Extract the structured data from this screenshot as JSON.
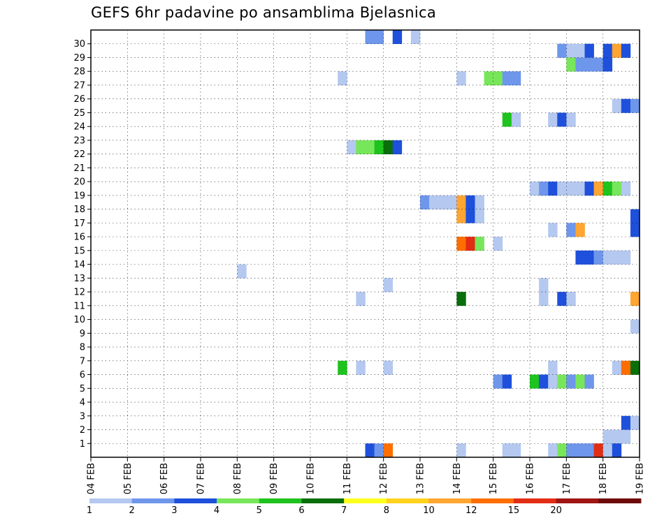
{
  "title": "GEFS 6hr padavine po ansamblima Bjelasnica",
  "chart_data": {
    "type": "heatmap",
    "title": "GEFS 6hr padavine po ansamblima Bjelasnica",
    "xlabel": "",
    "ylabel": "",
    "x_tick_labels": [
      "04 FEB",
      "05 FEB",
      "06 FEB",
      "07 FEB",
      "08 FEB",
      "09 FEB",
      "10 FEB",
      "11 FEB",
      "12 FEB",
      "13 FEB",
      "14 FEB",
      "15 FEB",
      "16 FEB",
      "17 FEB",
      "18 FEB",
      "19 FEB"
    ],
    "y_tick_labels": [
      "1",
      "2",
      "3",
      "4",
      "5",
      "6",
      "7",
      "8",
      "9",
      "10",
      "11",
      "12",
      "13",
      "14",
      "15",
      "16",
      "17",
      "18",
      "19",
      "20",
      "21",
      "22",
      "23",
      "24",
      "25",
      "26",
      "27",
      "28",
      "29",
      "30"
    ],
    "xlim": [
      0,
      60
    ],
    "ylim": [
      0,
      30
    ],
    "grid": true,
    "levels": [
      1,
      2,
      3,
      4,
      5,
      6,
      7,
      8,
      10,
      12,
      15,
      20
    ],
    "level_colors": [
      "#b4c8f0",
      "#6e96eb",
      "#1e50dc",
      "#78e65a",
      "#1ec31e",
      "#0a6e0a",
      "#ffff1e",
      "#ffd21e",
      "#ffa532",
      "#ff6e00",
      "#e12d14",
      "#a01414",
      "#6e0a0a"
    ],
    "colorbar_labels": [
      "1",
      "2",
      "3",
      "4",
      "5",
      "6",
      "7",
      "8",
      "10",
      "12",
      "15",
      "20"
    ],
    "cells": [
      [
        30,
        30,
        1
      ],
      [
        31,
        30,
        1
      ],
      [
        33,
        30,
        2
      ],
      [
        35,
        30,
        0
      ],
      [
        51,
        29,
        1
      ],
      [
        52,
        29,
        0
      ],
      [
        53,
        29,
        0
      ],
      [
        54,
        29,
        2
      ],
      [
        56,
        29,
        2
      ],
      [
        57,
        29,
        8
      ],
      [
        58,
        29,
        2
      ],
      [
        52,
        28,
        3
      ],
      [
        53,
        28,
        1
      ],
      [
        54,
        28,
        1
      ],
      [
        55,
        28,
        1
      ],
      [
        56,
        28,
        2
      ],
      [
        27,
        27,
        0
      ],
      [
        40,
        27,
        0
      ],
      [
        43,
        27,
        3
      ],
      [
        44,
        27,
        3
      ],
      [
        45,
        27,
        1
      ],
      [
        46,
        27,
        1
      ],
      [
        57,
        25,
        0
      ],
      [
        58,
        25,
        2
      ],
      [
        59,
        25,
        1
      ],
      [
        45,
        24,
        4
      ],
      [
        46,
        24,
        0
      ],
      [
        50,
        24,
        0
      ],
      [
        51,
        24,
        2
      ],
      [
        52,
        24,
        0
      ],
      [
        28,
        22,
        0
      ],
      [
        29,
        22,
        3
      ],
      [
        30,
        22,
        3
      ],
      [
        31,
        22,
        4
      ],
      [
        32,
        22,
        5
      ],
      [
        33,
        22,
        2
      ],
      [
        48,
        19,
        0
      ],
      [
        49,
        19,
        1
      ],
      [
        50,
        19,
        2
      ],
      [
        51,
        19,
        0
      ],
      [
        52,
        19,
        0
      ],
      [
        53,
        19,
        0
      ],
      [
        54,
        19,
        2
      ],
      [
        55,
        19,
        8
      ],
      [
        56,
        19,
        4
      ],
      [
        57,
        19,
        3
      ],
      [
        58,
        19,
        0
      ],
      [
        36,
        18,
        1
      ],
      [
        37,
        18,
        0
      ],
      [
        38,
        18,
        0
      ],
      [
        39,
        18,
        0
      ],
      [
        40,
        18,
        8
      ],
      [
        41,
        18,
        2
      ],
      [
        42,
        18,
        0
      ],
      [
        40,
        17,
        8
      ],
      [
        41,
        17,
        2
      ],
      [
        42,
        17,
        0
      ],
      [
        59,
        17,
        2
      ],
      [
        50,
        16,
        0
      ],
      [
        52,
        16,
        1
      ],
      [
        53,
        16,
        8
      ],
      [
        59,
        16,
        2
      ],
      [
        40,
        15,
        9
      ],
      [
        41,
        15,
        10
      ],
      [
        42,
        15,
        3
      ],
      [
        44,
        15,
        0
      ],
      [
        16,
        13,
        0
      ],
      [
        53,
        14,
        2
      ],
      [
        54,
        14,
        2
      ],
      [
        55,
        14,
        1
      ],
      [
        56,
        14,
        0
      ],
      [
        57,
        14,
        0
      ],
      [
        58,
        14,
        0
      ],
      [
        32,
        12,
        0
      ],
      [
        49,
        12,
        0
      ],
      [
        29,
        11,
        0
      ],
      [
        40,
        11,
        5
      ],
      [
        49,
        11,
        0
      ],
      [
        51,
        11,
        2
      ],
      [
        52,
        11,
        0
      ],
      [
        59,
        11,
        8
      ],
      [
        59,
        9,
        0
      ],
      [
        27,
        6,
        4
      ],
      [
        29,
        6,
        0
      ],
      [
        32,
        6,
        0
      ],
      [
        50,
        6,
        0
      ],
      [
        57,
        6,
        0
      ],
      [
        58,
        6,
        9
      ],
      [
        59,
        6,
        5
      ],
      [
        44,
        5,
        1
      ],
      [
        45,
        5,
        2
      ],
      [
        48,
        5,
        4
      ],
      [
        49,
        5,
        2
      ],
      [
        50,
        5,
        0
      ],
      [
        51,
        5,
        3
      ],
      [
        52,
        5,
        1
      ],
      [
        53,
        5,
        3
      ],
      [
        54,
        5,
        1
      ],
      [
        58,
        2,
        2
      ],
      [
        59,
        2,
        0
      ],
      [
        56,
        1,
        0
      ],
      [
        57,
        1,
        0
      ],
      [
        58,
        1,
        0
      ],
      [
        30,
        0,
        2
      ],
      [
        31,
        0,
        1
      ],
      [
        32,
        0,
        9
      ],
      [
        40,
        0,
        0
      ],
      [
        45,
        0,
        0
      ],
      [
        46,
        0,
        0
      ],
      [
        50,
        0,
        0
      ],
      [
        51,
        0,
        3
      ],
      [
        52,
        0,
        1
      ],
      [
        53,
        0,
        1
      ],
      [
        54,
        0,
        1
      ],
      [
        55,
        0,
        10
      ],
      [
        56,
        0,
        0
      ],
      [
        57,
        0,
        2
      ]
    ]
  }
}
